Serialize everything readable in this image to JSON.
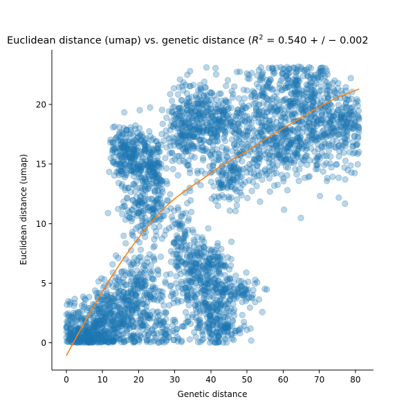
{
  "chart_data": {
    "type": "scatter",
    "title_main": "Euclidean distance (umap) vs. genetic distance (",
    "title_r2_symbol": "R",
    "title_r2_exponent": "2",
    "title_r2_value": " = 0.540 + / − 0.002",
    "xlabel": "Genetic distance",
    "ylabel": "Euclidean distance (umap)",
    "xlim": [
      -4,
      85
    ],
    "ylim": [
      -2.3,
      24.6
    ],
    "xticks": [
      0,
      10,
      20,
      30,
      40,
      50,
      60,
      70,
      80
    ],
    "yticks": [
      0,
      5,
      10,
      15,
      20
    ],
    "grid": false,
    "legend": "none",
    "scatter_color": "#1f77b4",
    "scatter_alpha": 0.3,
    "line_color": "#ff7f0e",
    "clusters": [
      {
        "cx": 9,
        "cy": 1.8,
        "sx": 5,
        "sy": 1.4,
        "n": 320
      },
      {
        "cx": 18,
        "cy": 2.2,
        "sx": 5,
        "sy": 1.8,
        "n": 260
      },
      {
        "cx": 20,
        "cy": 5,
        "sx": 3,
        "sy": 1.4,
        "n": 120
      },
      {
        "cx": 5,
        "cy": 0.4,
        "sx": 3.5,
        "sy": 0.4,
        "n": 140
      },
      {
        "cx": 27,
        "cy": 1.5,
        "sx": 3,
        "sy": 1,
        "n": 60
      },
      {
        "cx": 40,
        "cy": 4.5,
        "sx": 4,
        "sy": 2,
        "n": 300
      },
      {
        "cx": 36,
        "cy": 6.5,
        "sx": 3,
        "sy": 1.2,
        "n": 120
      },
      {
        "cx": 42,
        "cy": 1.2,
        "sx": 4,
        "sy": 0.8,
        "n": 120
      },
      {
        "cx": 48,
        "cy": 4.3,
        "sx": 3,
        "sy": 0.6,
        "n": 70
      },
      {
        "cx": 32,
        "cy": 9,
        "sx": 1.5,
        "sy": 1.5,
        "n": 60
      },
      {
        "cx": 22,
        "cy": 11.2,
        "sx": 3.5,
        "sy": 1.3,
        "n": 160
      },
      {
        "cx": 20,
        "cy": 15.5,
        "sx": 3.5,
        "sy": 1.4,
        "n": 240
      },
      {
        "cx": 16,
        "cy": 16.5,
        "sx": 2,
        "sy": 0.9,
        "n": 80
      },
      {
        "cx": 24,
        "cy": 14,
        "sx": 2,
        "sy": 1,
        "n": 60
      },
      {
        "cx": 36,
        "cy": 19,
        "sx": 4,
        "sy": 1.6,
        "n": 240
      },
      {
        "cx": 33,
        "cy": 17,
        "sx": 3,
        "sy": 1.6,
        "n": 100
      },
      {
        "cx": 45,
        "cy": 14,
        "sx": 3.5,
        "sy": 1.2,
        "n": 140
      },
      {
        "cx": 43,
        "cy": 18.5,
        "sx": 4,
        "sy": 1.2,
        "n": 120
      },
      {
        "cx": 55,
        "cy": 18,
        "sx": 6,
        "sy": 2.2,
        "n": 320
      },
      {
        "cx": 65,
        "cy": 21,
        "sx": 6,
        "sy": 1.4,
        "n": 260
      },
      {
        "cx": 72,
        "cy": 18,
        "sx": 5,
        "sy": 1.8,
        "n": 240
      },
      {
        "cx": 78,
        "cy": 18.3,
        "sx": 2,
        "sy": 1,
        "n": 70
      },
      {
        "cx": 62,
        "cy": 16,
        "sx": 4,
        "sy": 1.2,
        "n": 120
      }
    ],
    "fit_line": {
      "x": [
        0,
        3,
        6,
        9,
        12,
        15,
        18,
        21,
        24,
        27,
        30,
        34,
        38,
        42,
        46,
        50,
        55,
        60,
        65,
        70,
        75,
        81
      ],
      "y": [
        -1.1,
        0.6,
        2.2,
        3.8,
        5.3,
        6.7,
        8.0,
        9.2,
        10.3,
        11.3,
        12.1,
        13.0,
        13.8,
        14.7,
        15.4,
        16.1,
        17.1,
        18.0,
        18.9,
        19.8,
        20.6,
        21.3
      ]
    }
  }
}
